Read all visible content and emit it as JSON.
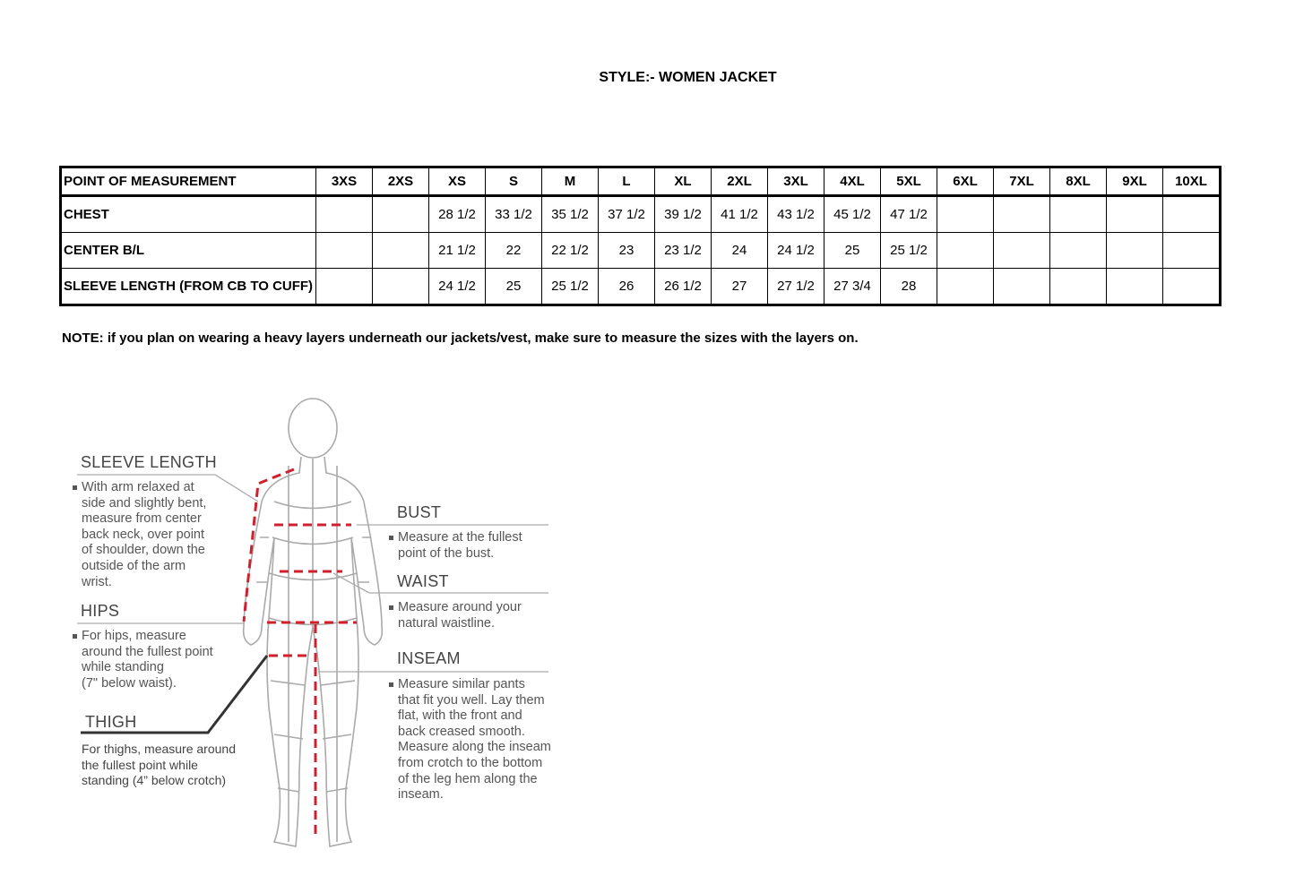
{
  "title": "STYLE:- WOMEN JACKET",
  "table": {
    "header": [
      "POINT OF MEASUREMENT",
      "3XS",
      "2XS",
      "XS",
      "S",
      "M",
      "L",
      "XL",
      "2XL",
      "3XL",
      "4XL",
      "5XL",
      "6XL",
      "7XL",
      "8XL",
      "9XL",
      "10XL"
    ],
    "rows": [
      [
        "CHEST",
        "",
        "",
        "28 1/2",
        "33 1/2",
        "35 1/2",
        "37 1/2",
        "39 1/2",
        "41 1/2",
        "43 1/2",
        "45 1/2",
        "47 1/2",
        "",
        "",
        "",
        "",
        ""
      ],
      [
        "CENTER B/L",
        "",
        "",
        "21 1/2",
        "22",
        "22 1/2",
        "23",
        "23 1/2",
        "24",
        "24 1/2",
        "25",
        "25 1/2",
        "",
        "",
        "",
        "",
        ""
      ],
      [
        "SLEEVE LENGTH (FROM CB TO CUFF)",
        "",
        "",
        "24 1/2",
        "25",
        "25 1/2",
        "26",
        "26 1/2",
        "27",
        "27 1/2",
        "27 3/4",
        "28",
        "",
        "",
        "",
        "",
        ""
      ]
    ]
  },
  "note": "NOTE: if you plan on wearing a heavy layers underneath our jackets/vest, make sure to measure the sizes with the layers on.",
  "figure": {
    "accent_color": "#d0202e",
    "sleeve": {
      "label": "SLEEVE LENGTH",
      "text": [
        "With arm relaxed at",
        "side and slightly bent,",
        "measure from center",
        "back neck, over point",
        "of shoulder, down the",
        "outside of the arm",
        "wrist."
      ]
    },
    "hips": {
      "label": "HIPS",
      "text": [
        "For hips, measure",
        "around the fullest point",
        "while standing",
        "(7\" below waist)."
      ]
    },
    "thigh": {
      "label": "THIGH",
      "text": [
        "For thighs, measure around",
        "the fullest point while",
        "standing (4” below crotch)"
      ]
    },
    "bust": {
      "label": "BUST",
      "text": [
        "Measure at the fullest",
        "point of the bust."
      ]
    },
    "waist": {
      "label": "WAIST",
      "text": [
        "Measure around your",
        "natural waistline."
      ]
    },
    "inseam": {
      "label": "INSEAM",
      "text": [
        "Measure similar pants",
        "that fit you well. Lay them",
        "flat, with the front and",
        "back creased smooth.",
        "Measure along the inseam",
        "from crotch to the bottom",
        "of the leg hem along the",
        "inseam."
      ]
    }
  }
}
